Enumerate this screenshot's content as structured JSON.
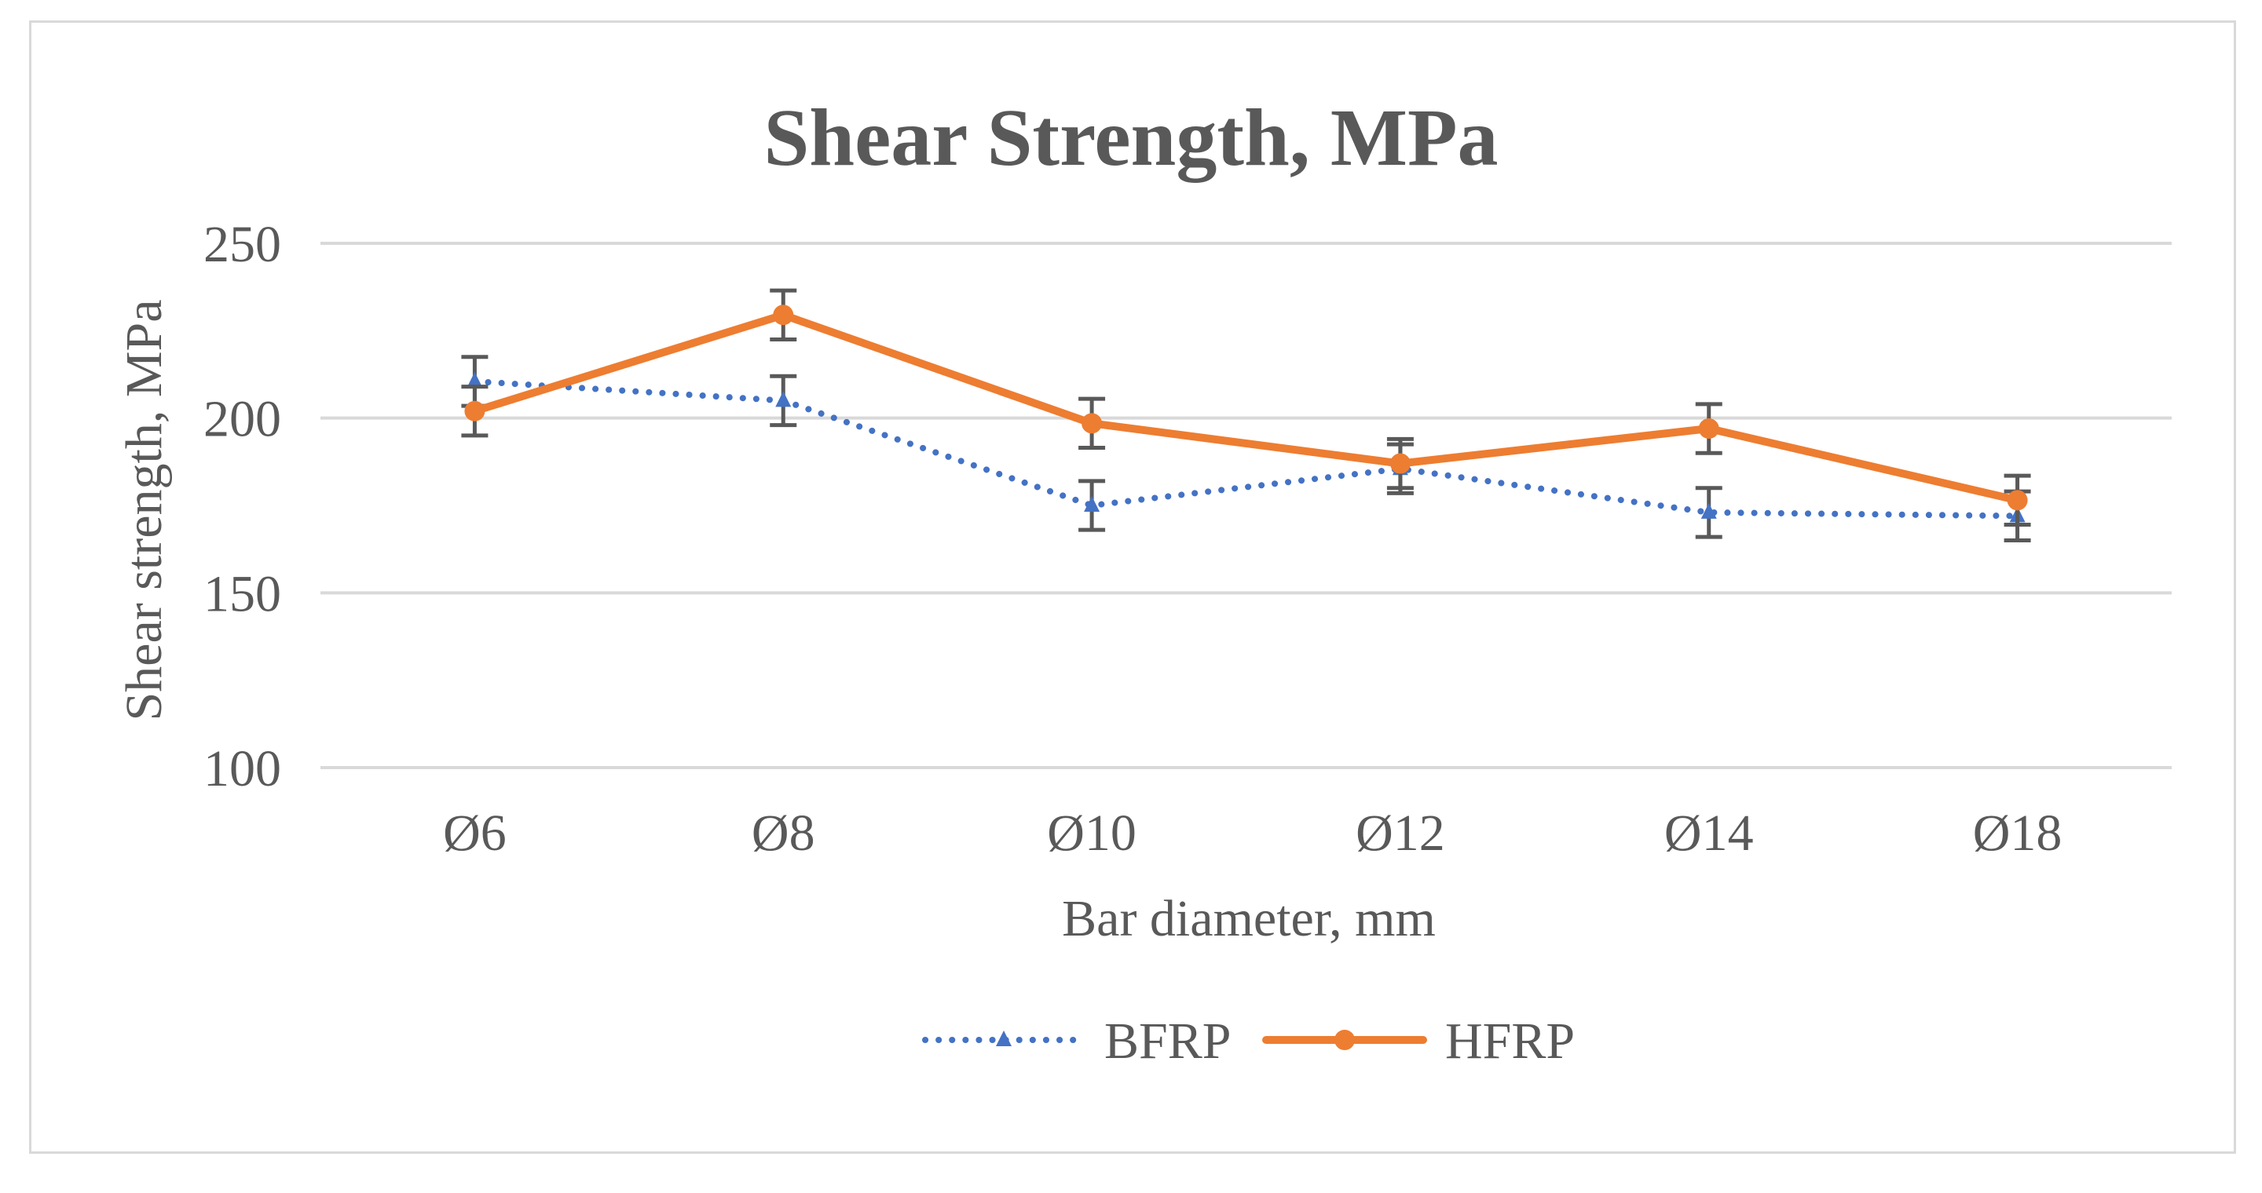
{
  "chart_data": {
    "type": "line",
    "title": "Shear Strength, MPa",
    "xlabel": "Bar diameter, mm",
    "ylabel": "Shear strength, MPa",
    "categories": [
      "Ø6",
      "Ø8",
      "Ø10",
      "Ø12",
      "Ø14",
      "Ø18"
    ],
    "ylim": [
      100,
      250
    ],
    "yticks": [
      100,
      150,
      200,
      250
    ],
    "grid": true,
    "legend_position": "bottom",
    "series": [
      {
        "name": "BFRP",
        "color": "#4472c4",
        "line_style": "dotted",
        "marker": "triangle",
        "values": [
          210.5,
          205,
          175,
          185.5,
          173,
          172
        ],
        "error": [
          7,
          7,
          7,
          7,
          7,
          7
        ]
      },
      {
        "name": "HFRP",
        "color": "#ed7d31",
        "line_style": "solid",
        "marker": "circle",
        "values": [
          202,
          229.5,
          198.5,
          187,
          197,
          176.5
        ],
        "error": [
          7,
          7,
          7,
          7,
          7,
          7
        ]
      }
    ],
    "colors": {
      "gridline": "#d9d9d9",
      "text": "#595959",
      "errorbar": "#595959"
    }
  }
}
